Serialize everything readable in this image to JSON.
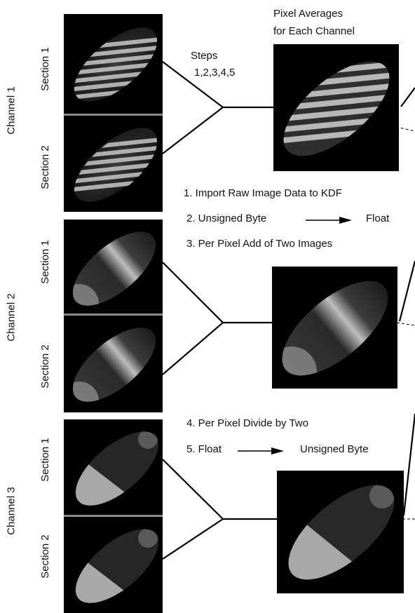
{
  "channels": [
    {
      "label": "Channel 1",
      "sections": [
        "Section 1",
        "Section 2"
      ]
    },
    {
      "label": "Channel 2",
      "sections": [
        "Section 1",
        "Section 2"
      ]
    },
    {
      "label": "Channel 3",
      "sections": [
        "Section 1",
        "Section 2"
      ]
    }
  ],
  "header": {
    "line1": "Pixel Averages",
    "line2": "for Each Channel"
  },
  "steps_label": {
    "line1": "Steps",
    "line2": "1,2,3,4,5"
  },
  "steps": {
    "s1": "1. Import Raw Image Data to KDF",
    "s2_from": "2. Unsigned Byte",
    "s2_to": "Float",
    "s3": "3. Per Pixel Add of Two Images",
    "s4": "4. Per Pixel Divide by Two",
    "s5_from": "5. Float",
    "s5_to": "Unsigned Byte"
  },
  "colors": {
    "background": "#ffffff",
    "panel": "#000000",
    "line": "#000000",
    "text": "#111111"
  }
}
